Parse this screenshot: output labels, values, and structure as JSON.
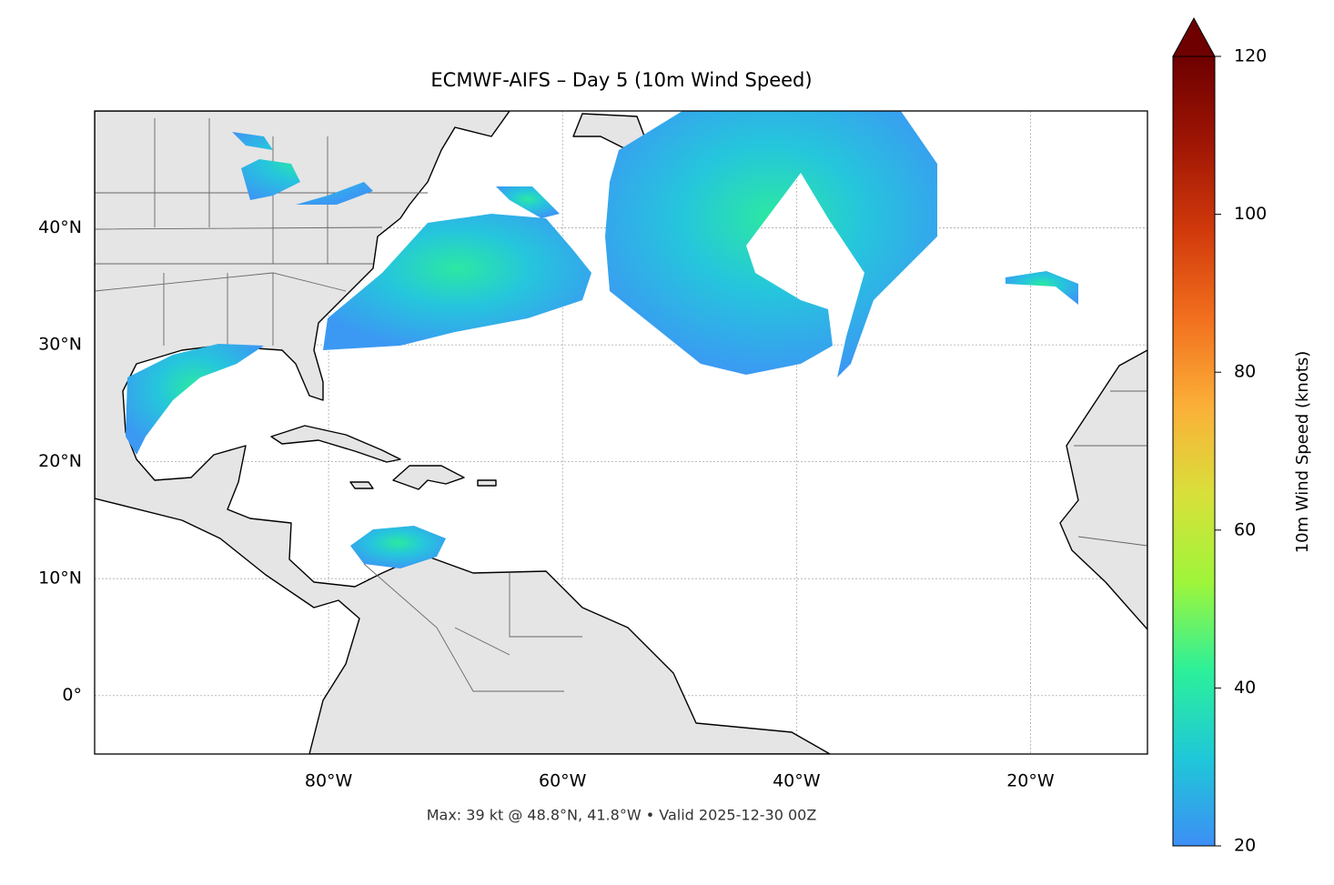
{
  "title": "ECMWF-AIFS – Day 5 (10m Wind Speed)",
  "footer": "Max: 39 kt @ 48.8°N, 41.8°W • Valid 2025-12-30 00Z",
  "lon_lim": [
    -100,
    -10
  ],
  "lat_lim": [
    -5,
    50
  ],
  "lon_ticks": [
    {
      "value": -80,
      "label": "80°W"
    },
    {
      "value": -60,
      "label": "60°W"
    },
    {
      "value": -40,
      "label": "40°W"
    },
    {
      "value": -20,
      "label": "20°W"
    }
  ],
  "lat_ticks": [
    {
      "value": 0,
      "label": "0°"
    },
    {
      "value": 10,
      "label": "10°N"
    },
    {
      "value": 20,
      "label": "20°N"
    },
    {
      "value": 30,
      "label": "30°N"
    },
    {
      "value": 40,
      "label": "40°N"
    }
  ],
  "grid": true,
  "colorbar": {
    "label": "10m Wind Speed (knots)",
    "lim": [
      20,
      120
    ],
    "ticks": [
      20,
      40,
      60,
      80,
      100,
      120
    ],
    "colors": [
      "#3d8ff5",
      "#1fc8d8",
      "#2cf09a",
      "#9ef53a",
      "#d8e03a",
      "#fbb038",
      "#f2701e",
      "#d23a0c",
      "#a01604",
      "#6e0000"
    ]
  }
}
